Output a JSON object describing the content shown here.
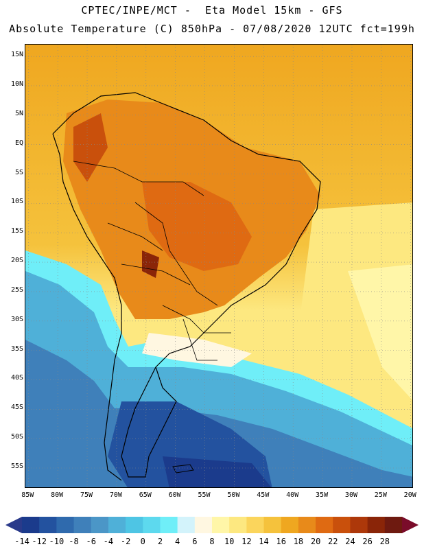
{
  "header": {
    "line1": "CPTEC/INPE/MCT -  Eta Model 15km - GFS",
    "line2": "Absolute Temperature (C) 850hPa - 07/08/2020 12UTC fct=199h"
  },
  "axes": {
    "lat_labels": [
      "15N",
      "10N",
      "5N",
      "EQ",
      "5S",
      "10S",
      "15S",
      "20S",
      "25S",
      "30S",
      "35S",
      "40S",
      "45S",
      "50S",
      "55S"
    ],
    "lat_values": [
      15,
      10,
      5,
      0,
      -5,
      -10,
      -15,
      -20,
      -25,
      -30,
      -35,
      -40,
      -45,
      -50,
      -55
    ],
    "lon_labels": [
      "85W",
      "80W",
      "75W",
      "70W",
      "65W",
      "60W",
      "55W",
      "50W",
      "45W",
      "40W",
      "35W",
      "30W",
      "25W",
      "20W"
    ],
    "lon_values": [
      -85,
      -80,
      -75,
      -70,
      -65,
      -60,
      -55,
      -50,
      -45,
      -40,
      -35,
      -30,
      -25,
      -20
    ],
    "lon_range": [
      -85.5,
      -19.5
    ],
    "lat_range": [
      -58.5,
      17
    ]
  },
  "colorbar": {
    "labels": [
      "-14",
      "-12",
      "-10",
      "-8",
      "-6",
      "-4",
      "-2",
      "0",
      "2",
      "4",
      "6",
      "8",
      "10",
      "12",
      "14",
      "16",
      "18",
      "20",
      "22",
      "24",
      "26",
      "28"
    ],
    "colors": [
      "#1b3b8c",
      "#23529f",
      "#2f6aad",
      "#3f80ba",
      "#4b96c7",
      "#4fb0d8",
      "#4ec5e4",
      "#5dd9ee",
      "#6feef8",
      "#d3f3fb",
      "#fff7e1",
      "#fff6a8",
      "#fde880",
      "#fbd55c",
      "#f5c23c",
      "#efa720",
      "#e88a1a",
      "#df6a12",
      "#c9500c",
      "#ad380a",
      "#8a2508",
      "#6e1a10"
    ],
    "left_cap_color": "#2a3a8a",
    "right_cap_color": "#7a0c2a"
  }
}
